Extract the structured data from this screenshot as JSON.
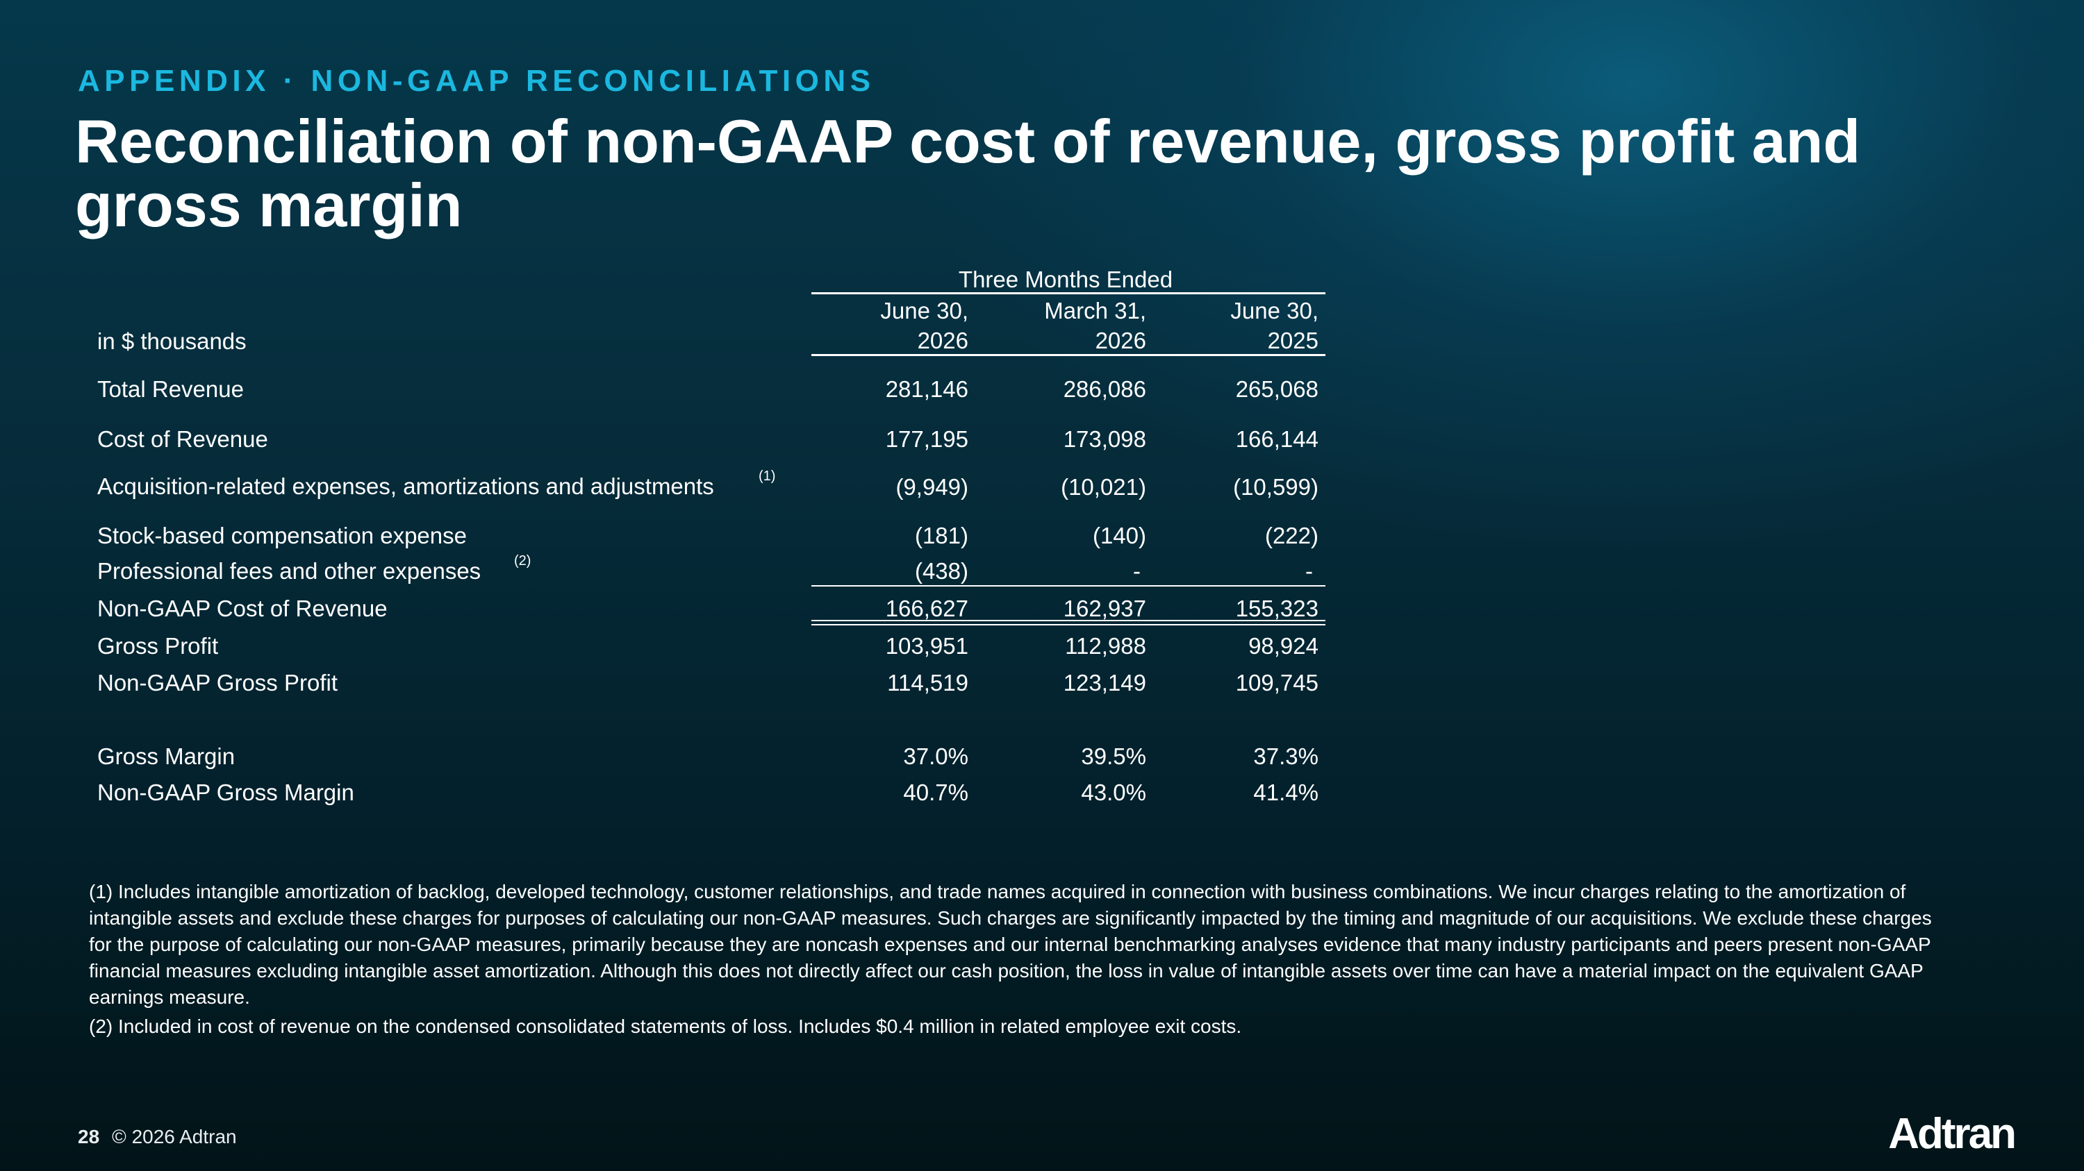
{
  "eyebrow": "APPENDIX · NON-GAAP RECONCILIATIONS",
  "title": "Reconciliation of non-GAAP cost of revenue, gross profit and gross margin",
  "table": {
    "group_header": "Three Months Ended",
    "unit_label": "in $ thousands",
    "columns": [
      {
        "line1": "June  30,",
        "line2": "2026"
      },
      {
        "line1": "March  31,",
        "line2": "2026"
      },
      {
        "line1": "June  30,",
        "line2": "2025"
      }
    ],
    "rows": [
      {
        "label": "Total Revenue",
        "note": "",
        "values": [
          "281,146",
          "286,086",
          "265,068"
        ]
      },
      {
        "label": "Cost of Revenue",
        "note": "",
        "values": [
          "177,195",
          "173,098",
          "166,144"
        ]
      },
      {
        "label": "Acquisition-related expenses, amortizations and adjustments",
        "note": "(1)",
        "values": [
          "(9,949)",
          "(10,021)",
          "(10,599)"
        ]
      },
      {
        "label": "Stock-based compensation expense",
        "note": "",
        "values": [
          "(181)",
          "(140)",
          "(222)"
        ]
      },
      {
        "label": "Professional fees and other expenses",
        "note": "(2)",
        "values": [
          "(438)",
          "-",
          "-"
        ]
      },
      {
        "label": "Non-GAAP Cost of Revenue",
        "note": "",
        "values": [
          "166,627",
          "162,937",
          "155,323"
        ]
      },
      {
        "label": "Gross Profit",
        "note": "",
        "values": [
          "103,951",
          "112,988",
          "98,924"
        ]
      },
      {
        "label": "Non-GAAP Gross Profit",
        "note": "",
        "values": [
          "114,519",
          "123,149",
          "109,745"
        ]
      },
      {
        "label": "Gross Margin",
        "note": "",
        "values": [
          "37.0%",
          "39.5%",
          "37.3%"
        ]
      },
      {
        "label": "Non-GAAP Gross Margin",
        "note": "",
        "values": [
          "40.7%",
          "43.0%",
          "41.4%"
        ]
      }
    ]
  },
  "footnotes": [
    "(1) Includes intangible amortization of backlog, developed technology, customer relationships, and trade names acquired in connection with business combinations. We incur charges relating to the amortization of intangible assets and exclude these charges for purposes of calculating our non-GAAP measures. Such charges are significantly impacted by the timing and magnitude of our acquisitions. We exclude these charges for the purpose of calculating our non-GAAP measures, primarily because they are noncash expenses and our internal benchmarking analyses evidence that many industry participants and peers present non-GAAP financial measures excluding intangible asset amortization. Although this does not directly affect our cash position, the loss in value of intangible assets over time can have a material impact on the equivalent GAAP earnings measure.",
    "(2) Included in cost of revenue on the condensed consolidated statements of loss. Includes $0.4 million in related employee exit costs."
  ],
  "footer": {
    "page_number": "28",
    "copyright": "© 2026 Adtran"
  },
  "logo": "Adtran",
  "colors": {
    "accent": "#1bb8e0",
    "background_dark": "#03202b",
    "background_light": "#0c6282"
  }
}
